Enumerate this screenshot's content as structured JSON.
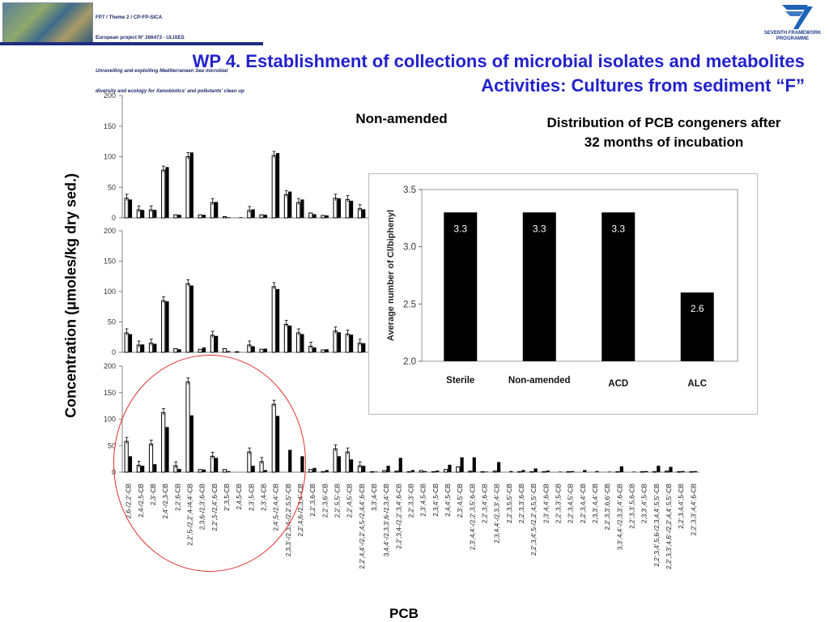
{
  "header": {
    "banner_lines": [
      "FP7 / Theme 2 / CP-FP-SICA",
      "European project N° 266473 - ULIXES",
      "",
      "Unravelling and exploiting Mediterranean Sea microbial",
      "diversity and ecology for Xenobiotics' and pollutants' clean up"
    ],
    "logo_text": [
      "SEVENTH FRAMEWORK",
      "PROGRAMME"
    ],
    "title_line1": "WP 4. Establishment of collections of microbial isolates and metabolites",
    "title_line2": "Activities: Cultures from sediment “F”"
  },
  "main_chart_text": {
    "ylabel": "Concentration (μmoles/kg dry sed.)",
    "xlabel": "PCB",
    "panel_label": "Non-amended"
  },
  "inset_title": "Distribution of PCB congeners after 32 months of incubation",
  "chart_data": [
    {
      "type": "bar",
      "panels": 3,
      "ylim": [
        0,
        200
      ],
      "yticks": [
        0,
        50,
        100,
        150,
        200
      ],
      "categories": [
        "2,6-/2,2'-CB",
        "2,4-/2,5-CB",
        "2,3'-CB",
        "2,4'-/2,3-CB",
        "2,2',6-CB",
        "2,2',5-/2,2',4-/4,4'-CB",
        "2,3,6-/2,3',6-CB",
        "2,2',3-/2,4',6-CB",
        "2',3,5-CB",
        "2,4,5-CB",
        "2,3',5-CB",
        "2,3',4-CB",
        "2,4',5-/2,4,4'-CB",
        "2,3,3'-/2,3,4-/2,2',5,5'-CB",
        "2,2',4,6-/2,3,4'-CB",
        "2,2',3,6-CB",
        "2,2',3,6'-CB",
        "2,2',5,5'-CB",
        "2,2',4,5'-CB",
        "2,2',4,4'-/2,2',4,5-/2,4,4',6-CB",
        "3,3',4-CB",
        "3,4,4'-/2,3,3',6-/2,3,4'-CB",
        "2,2',3,4-/2,2',3,4',6-CB",
        "2,2',3,3'-CB",
        "2,3',4,5-CB",
        "2,3,4',5-CB",
        "2,4,4',5-CB",
        "2,3',4,5'-CB",
        "2,3',4,4'-/2,2',3,5',6-CB",
        "2,2',3,4',6-CB",
        "2,3,4,4'-/2,3,3',4'-CB",
        "2,2',3,5,5'-CB",
        "2,2',3,3',6-CB",
        "2,2',3,4',5-/2,2',4,5,5'-CB",
        "2,3',4,4',6-CB",
        "2,2',3,3',5-CB",
        "2,2',3,4,5'-CB",
        "2,2',3,4,4'-CB",
        "2,3,3',4,4'-CB",
        "2,2',3,3',6,6'-CB",
        "3,3',4,4'-/2,3,3',4',6-CB",
        "2,2',3,3',5,6-CB",
        "2,3,3',4',5-CB",
        "2,2',3,4',5,6-/2,3,4,4',5,5'-CB",
        "2,2',3,3',4,6'-/2,2',4,4',5,5'-CB",
        "2,2',3,4,4',5-CB",
        "2,2',3,3',4,4',6-CB"
      ],
      "series": [
        {
          "values": [
            [
              32,
              13,
              13,
              78,
              5,
              100,
              5,
              25,
              2,
              0,
              12,
              5,
              102,
              38,
              25,
              8,
              4,
              32,
              30,
              15,
              0,
              0,
              0,
              0,
              0,
              0,
              0,
              0,
              0,
              0,
              0,
              0,
              0,
              0,
              0,
              0,
              0,
              0,
              0,
              0,
              0,
              0,
              0,
              0,
              0,
              0,
              0
            ],
            [
              32,
              12,
              15,
              85,
              6,
              113,
              5,
              28,
              6,
              1,
              12,
              5,
              108,
              46,
              32,
              10,
              4,
              35,
              30,
              15,
              0,
              0,
              0,
              0,
              0,
              0,
              0,
              0,
              0,
              0,
              0,
              0,
              0,
              0,
              0,
              0,
              0,
              0,
              0,
              0,
              0,
              0,
              0,
              0,
              0,
              0,
              0
            ],
            [
              58,
              13,
              53,
              112,
              12,
              170,
              5,
              30,
              5,
              0,
              38,
              20,
              128,
              0,
              0,
              5,
              1,
              44,
              38,
              12,
              1,
              3,
              2,
              1,
              3,
              1,
              5,
              10,
              2,
              1,
              2,
              0,
              1,
              1,
              1,
              0,
              1,
              0,
              0,
              0,
              1,
              0,
              1,
              1,
              2,
              1,
              1
            ]
          ]
        },
        {
          "values": [
            [
              30,
              13,
              13,
              83,
              5,
              107,
              5,
              26,
              1,
              1,
              14,
              5,
              106,
              43,
              30,
              6,
              4,
              32,
              28,
              14,
              1,
              0,
              0,
              0,
              0,
              0,
              0,
              0,
              0,
              0,
              0,
              0,
              0,
              0,
              0,
              0,
              0,
              0,
              0,
              0,
              0,
              0,
              0,
              0,
              0,
              0,
              0
            ],
            [
              30,
              13,
              14,
              84,
              5,
              110,
              8,
              27,
              2,
              0,
              10,
              6,
              104,
              44,
              30,
              8,
              5,
              33,
              29,
              15,
              0,
              0,
              0,
              0,
              0,
              0,
              0,
              0,
              0,
              0,
              0,
              0,
              0,
              0,
              0,
              0,
              0,
              0,
              0,
              0,
              0,
              0,
              0,
              0,
              0,
              0,
              0
            ],
            [
              30,
              12,
              15,
              85,
              6,
              107,
              5,
              27,
              2,
              0,
              12,
              4,
              106,
              42,
              30,
              8,
              4,
              30,
              24,
              12,
              1,
              12,
              27,
              4,
              2,
              3,
              14,
              28,
              28,
              1,
              19,
              2,
              4,
              7,
              3,
              1,
              2,
              4,
              2,
              1,
              11,
              1,
              2,
              12,
              10,
              2,
              2
            ]
          ]
        }
      ]
    },
    {
      "type": "bar",
      "categories": [
        "Sterile",
        "Non-amended",
        "ACD",
        "ALC"
      ],
      "values": [
        3.3,
        3.3,
        3.3,
        2.6
      ],
      "data_labels": [
        "3.3",
        "3.3",
        "3.3",
        "2.6"
      ],
      "ylabel": "Average number of Cl/biphenyl",
      "ylim": [
        2.0,
        3.5
      ],
      "yticks": [
        "2.0",
        "2.5",
        "3.0",
        "3.5"
      ]
    }
  ]
}
